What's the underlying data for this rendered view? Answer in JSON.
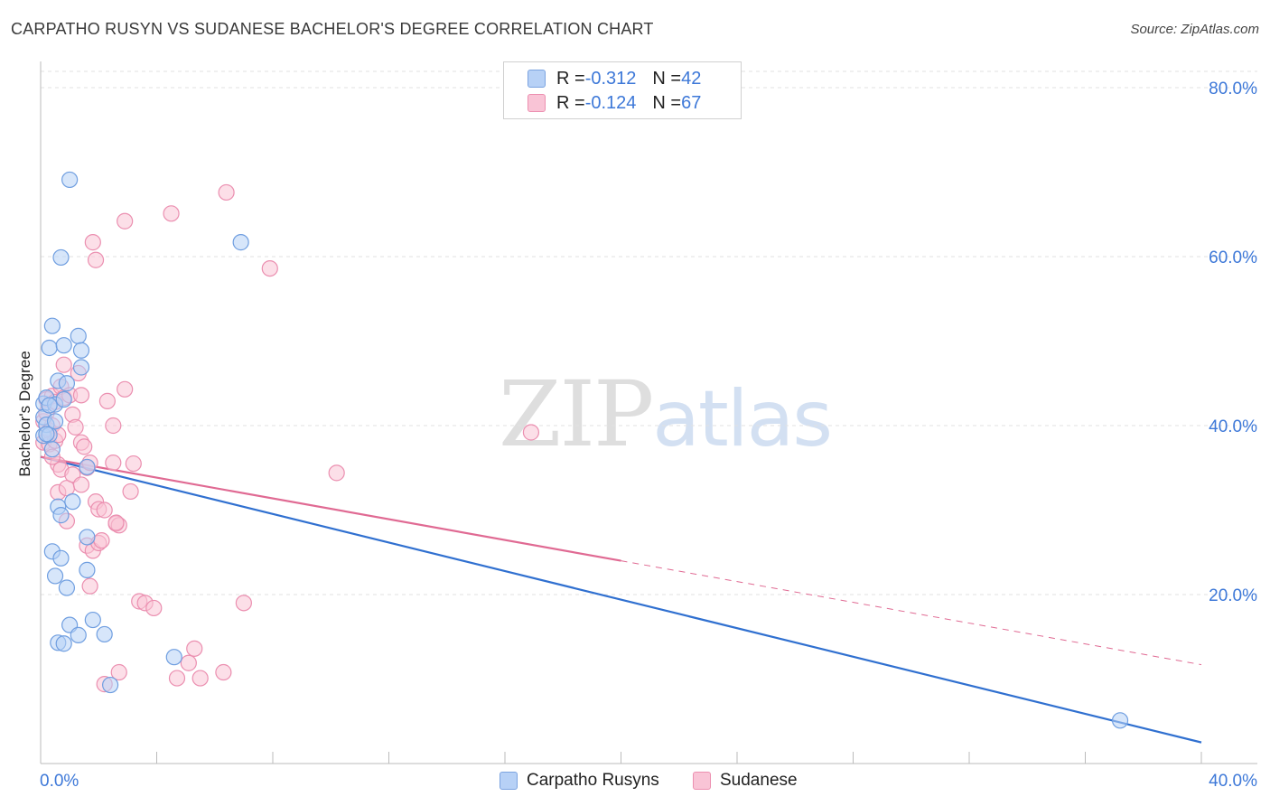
{
  "title": "CARPATHO RUSYN VS SUDANESE BACHELOR'S DEGREE CORRELATION CHART",
  "source": "Source: ZipAtlas.com",
  "watermark": {
    "zip": "ZIP",
    "atlas": "atlas"
  },
  "legend": {
    "rows": [
      {
        "r_label": "R = ",
        "r_value": "-0.312",
        "n_label": "N = ",
        "n_value": "42"
      },
      {
        "r_label": "R = ",
        "r_value": "-0.124",
        "n_label": "N = ",
        "n_value": "67"
      }
    ]
  },
  "colors": {
    "blue_fill": "#b7d1f6",
    "blue_stroke": "#6f9ee0",
    "blue_line": "#3070d0",
    "pink_fill": "#f9c4d6",
    "pink_stroke": "#eb8fb0",
    "pink_line": "#e06a93",
    "grid": "#e2e2e2",
    "tick_label": "#3d78d8"
  },
  "chart_data": {
    "type": "scatter",
    "title": "CARPATHO RUSYN VS SUDANESE BACHELOR'S DEGREE CORRELATION CHART",
    "xlabel": "",
    "ylabel": "Bachelor's Degree",
    "xlim": [
      0,
      40
    ],
    "ylim": [
      0,
      80
    ],
    "x_tick_labels": [
      "0.0%",
      "40.0%"
    ],
    "y_ticks": [
      20,
      40,
      60,
      80
    ],
    "y_tick_labels": [
      "20.0%",
      "40.0%",
      "60.0%",
      "80.0%"
    ],
    "grid": true,
    "series": [
      {
        "name": "Carpatho Rusyns",
        "color": "blue",
        "points": [
          [
            0.1,
            42.6
          ],
          [
            0.1,
            41.0
          ],
          [
            0.1,
            38.8
          ],
          [
            0.2,
            43.3
          ],
          [
            0.2,
            40.1
          ],
          [
            0.3,
            49.2
          ],
          [
            0.3,
            38.9
          ],
          [
            0.4,
            51.8
          ],
          [
            0.4,
            37.2
          ],
          [
            0.4,
            25.1
          ],
          [
            0.5,
            42.5
          ],
          [
            0.5,
            22.2
          ],
          [
            0.6,
            45.3
          ],
          [
            0.6,
            30.4
          ],
          [
            0.6,
            14.3
          ],
          [
            0.7,
            59.9
          ],
          [
            0.7,
            29.4
          ],
          [
            0.7,
            24.3
          ],
          [
            0.8,
            43.1
          ],
          [
            0.8,
            14.2
          ],
          [
            0.8,
            49.5
          ],
          [
            0.9,
            20.8
          ],
          [
            0.9,
            45.0
          ],
          [
            1.0,
            69.1
          ],
          [
            1.0,
            16.4
          ],
          [
            1.1,
            31.0
          ],
          [
            1.3,
            50.6
          ],
          [
            1.3,
            15.2
          ],
          [
            1.4,
            48.9
          ],
          [
            1.4,
            46.9
          ],
          [
            1.6,
            35.1
          ],
          [
            1.6,
            26.8
          ],
          [
            1.6,
            22.9
          ],
          [
            1.8,
            17.0
          ],
          [
            2.2,
            15.3
          ],
          [
            2.4,
            9.3
          ],
          [
            4.6,
            12.6
          ],
          [
            6.9,
            61.7
          ],
          [
            37.2,
            5.1
          ],
          [
            0.2,
            39.0
          ],
          [
            0.3,
            42.4
          ],
          [
            0.5,
            40.5
          ]
        ]
      },
      {
        "name": "Sudanese",
        "color": "pink",
        "points": [
          [
            0.1,
            40.5
          ],
          [
            0.1,
            38.0
          ],
          [
            0.2,
            43.1
          ],
          [
            0.2,
            41.5
          ],
          [
            0.3,
            39.4
          ],
          [
            0.3,
            37.8
          ],
          [
            0.4,
            43.5
          ],
          [
            0.4,
            40.0
          ],
          [
            0.5,
            42.8
          ],
          [
            0.5,
            38.2
          ],
          [
            0.6,
            35.4
          ],
          [
            0.6,
            32.1
          ],
          [
            0.7,
            44.6
          ],
          [
            0.7,
            34.8
          ],
          [
            0.8,
            47.2
          ],
          [
            0.8,
            43.3
          ],
          [
            0.9,
            32.6
          ],
          [
            0.9,
            28.7
          ],
          [
            1.0,
            43.6
          ],
          [
            1.1,
            41.3
          ],
          [
            1.1,
            34.2
          ],
          [
            1.2,
            39.8
          ],
          [
            1.3,
            46.2
          ],
          [
            1.4,
            43.6
          ],
          [
            1.4,
            33.0
          ],
          [
            1.4,
            38.0
          ],
          [
            1.5,
            37.5
          ],
          [
            1.6,
            25.8
          ],
          [
            1.6,
            35.0
          ],
          [
            1.7,
            21.0
          ],
          [
            1.7,
            35.6
          ],
          [
            1.8,
            61.7
          ],
          [
            1.8,
            25.2
          ],
          [
            1.9,
            59.6
          ],
          [
            1.9,
            31.0
          ],
          [
            2.0,
            26.1
          ],
          [
            2.0,
            30.1
          ],
          [
            2.1,
            26.4
          ],
          [
            2.2,
            30.0
          ],
          [
            2.2,
            9.4
          ],
          [
            2.3,
            42.9
          ],
          [
            2.5,
            40.0
          ],
          [
            2.5,
            35.6
          ],
          [
            2.6,
            28.4
          ],
          [
            2.7,
            28.2
          ],
          [
            2.7,
            10.8
          ],
          [
            2.9,
            64.2
          ],
          [
            2.9,
            44.3
          ],
          [
            3.1,
            32.2
          ],
          [
            3.2,
            35.5
          ],
          [
            3.4,
            19.2
          ],
          [
            3.6,
            19.0
          ],
          [
            3.9,
            18.4
          ],
          [
            4.5,
            65.1
          ],
          [
            4.7,
            10.1
          ],
          [
            5.1,
            11.9
          ],
          [
            5.3,
            13.6
          ],
          [
            5.5,
            10.1
          ],
          [
            6.3,
            10.8
          ],
          [
            6.4,
            67.6
          ],
          [
            7.0,
            19.0
          ],
          [
            7.9,
            58.6
          ],
          [
            10.2,
            34.4
          ],
          [
            16.9,
            39.2
          ],
          [
            0.4,
            36.3
          ],
          [
            0.6,
            38.9
          ],
          [
            2.6,
            28.5
          ]
        ]
      }
    ],
    "trendlines": [
      {
        "series": "Carpatho Rusyns",
        "x": [
          0,
          40
        ],
        "y": [
          36.3,
          2.5
        ],
        "style": "solid"
      },
      {
        "series": "Sudanese",
        "x": [
          0,
          20
        ],
        "y": [
          36.3,
          24.0
        ],
        "style": "solid"
      },
      {
        "series": "Sudanese",
        "x": [
          20,
          40
        ],
        "y": [
          24.0,
          11.7
        ],
        "style": "dashed"
      }
    ]
  },
  "bottom_legend": {
    "items": [
      "Carpatho Rusyns",
      "Sudanese"
    ]
  }
}
